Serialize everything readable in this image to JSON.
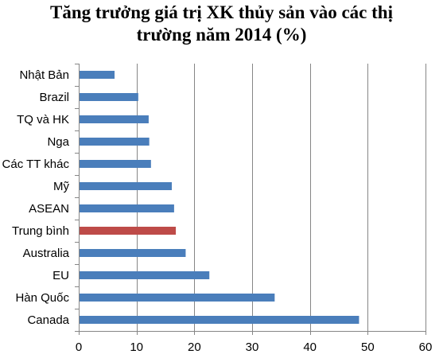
{
  "chart_data": {
    "type": "bar",
    "orientation": "horizontal",
    "title": [
      "Tăng trưởng giá trị XK thủy sản vào các thị",
      "trường năm 2014 (%)"
    ],
    "categories": [
      "Nhật Bản",
      "Brazil",
      "TQ và HK",
      "Nga",
      "Các TT khác",
      "Mỹ",
      "ASEAN",
      "Trung bình",
      "Australia",
      "EU",
      "Hàn Quốc",
      "Canada"
    ],
    "values": [
      6.2,
      10.3,
      12.1,
      12.2,
      12.5,
      16.1,
      16.5,
      16.8,
      18.5,
      22.6,
      33.9,
      48.5
    ],
    "highlight_category": "Trung bình",
    "colors": {
      "bar": "#4a7ebb",
      "highlight": "#be4b48",
      "gridline": "#868686",
      "axis": "#868686"
    },
    "xlim": [
      0,
      60
    ],
    "xticks": [
      0,
      10,
      20,
      30,
      40,
      50,
      60
    ],
    "xlabel": "",
    "ylabel": "",
    "grid": "vertical",
    "legend": "none"
  }
}
